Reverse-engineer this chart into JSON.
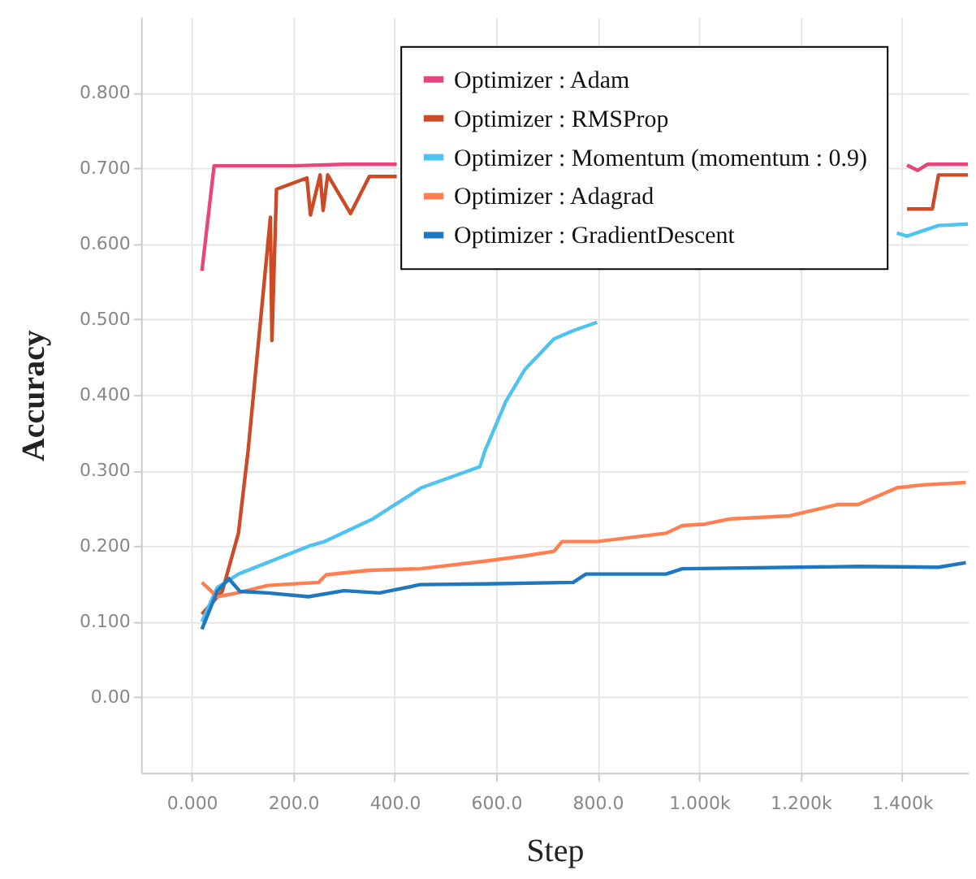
{
  "chart_data": {
    "type": "line",
    "xlabel": "Step",
    "ylabel": "Accuracy",
    "xlim": [
      -100,
      1530
    ],
    "ylim": [
      -0.1,
      0.9
    ],
    "xticks": [
      {
        "value": 0,
        "label": "0.000"
      },
      {
        "value": 200,
        "label": "200.0"
      },
      {
        "value": 400,
        "label": "400.0"
      },
      {
        "value": 600,
        "label": "600.0"
      },
      {
        "value": 800,
        "label": "800.0"
      },
      {
        "value": 1000,
        "label": "1.000k"
      },
      {
        "value": 1200,
        "label": "1.200k"
      },
      {
        "value": 1400,
        "label": "1.400k"
      }
    ],
    "yticks": [
      {
        "value": 0,
        "label": "0.00"
      },
      {
        "value": 0.1,
        "label": "0.100"
      },
      {
        "value": 0.2,
        "label": "0.200"
      },
      {
        "value": 0.3,
        "label": "0.300"
      },
      {
        "value": 0.4,
        "label": "0.400"
      },
      {
        "value": 0.5,
        "label": "0.500"
      },
      {
        "value": 0.6,
        "label": "0.600"
      },
      {
        "value": 0.7,
        "label": "0.700"
      },
      {
        "value": 0.8,
        "label": "0.800"
      }
    ],
    "grid": true,
    "legend": "top right",
    "line_style": "solid",
    "series": [
      {
        "name": "Optimizer : Adam",
        "color": "#e8457e",
        "x": [
          20,
          44,
          200,
          300,
          404,
          1384,
          1410,
          1431,
          1450,
          1530
        ],
        "values": [
          0.564,
          0.703,
          0.703,
          0.705,
          0.705,
          null,
          0.704,
          0.697,
          0.705,
          0.705
        ]
      },
      {
        "name": "Optimizer : RMSProp",
        "color": "#cc4a25",
        "x": [
          20,
          60,
          92,
          111,
          155,
          158,
          167,
          227,
          234,
          253,
          259,
          268,
          313,
          350,
          404,
          1384,
          1410,
          1460,
          1472,
          1530
        ],
        "values": [
          0.11,
          0.14,
          0.217,
          0.326,
          0.635,
          0.472,
          0.672,
          0.687,
          0.638,
          0.691,
          0.644,
          0.691,
          0.64,
          0.689,
          0.689,
          null,
          0.646,
          0.646,
          0.691,
          0.691
        ]
      },
      {
        "name": "Optimizer : Momentum (momentum : 0.9)",
        "color": "#4fc3f0",
        "x": [
          20,
          50,
          92,
          231,
          262,
          357,
          452,
          568,
          578,
          619,
          657,
          714,
          752,
          799,
          1384,
          1390,
          1410,
          1472,
          1530
        ],
        "values": [
          0.1,
          0.145,
          0.163,
          0.2,
          0.206,
          0.236,
          0.277,
          0.305,
          0.326,
          0.391,
          0.434,
          0.474,
          0.485,
          0.496,
          null,
          0.614,
          0.61,
          0.624,
          0.626
        ]
      },
      {
        "name": "Optimizer : Adagrad",
        "color": "#ff7f50",
        "x": [
          20,
          50,
          90,
          150,
          250,
          265,
          350,
          450,
          578,
          657,
          714,
          730,
          799,
          935,
          967,
          1011,
          1062,
          1179,
          1273,
          1314,
          1390,
          1441,
          1526
        ],
        "values": [
          0.152,
          0.133,
          0.138,
          0.148,
          0.152,
          0.162,
          0.168,
          0.17,
          0.18,
          0.187,
          0.193,
          0.206,
          0.206,
          0.217,
          0.227,
          0.229,
          0.236,
          0.24,
          0.255,
          0.255,
          0.277,
          0.281,
          0.284
        ]
      },
      {
        "name": "Optimizer : GradientDescent",
        "color": "#1f77c0",
        "x": [
          20,
          50,
          73,
          95,
          150,
          230,
          300,
          370,
          450,
          578,
          752,
          777,
          935,
          967,
          1314,
          1472,
          1526
        ],
        "values": [
          0.09,
          0.14,
          0.157,
          0.14,
          0.138,
          0.133,
          0.141,
          0.138,
          0.149,
          0.15,
          0.152,
          0.163,
          0.163,
          0.17,
          0.173,
          0.172,
          0.178
        ]
      }
    ]
  }
}
